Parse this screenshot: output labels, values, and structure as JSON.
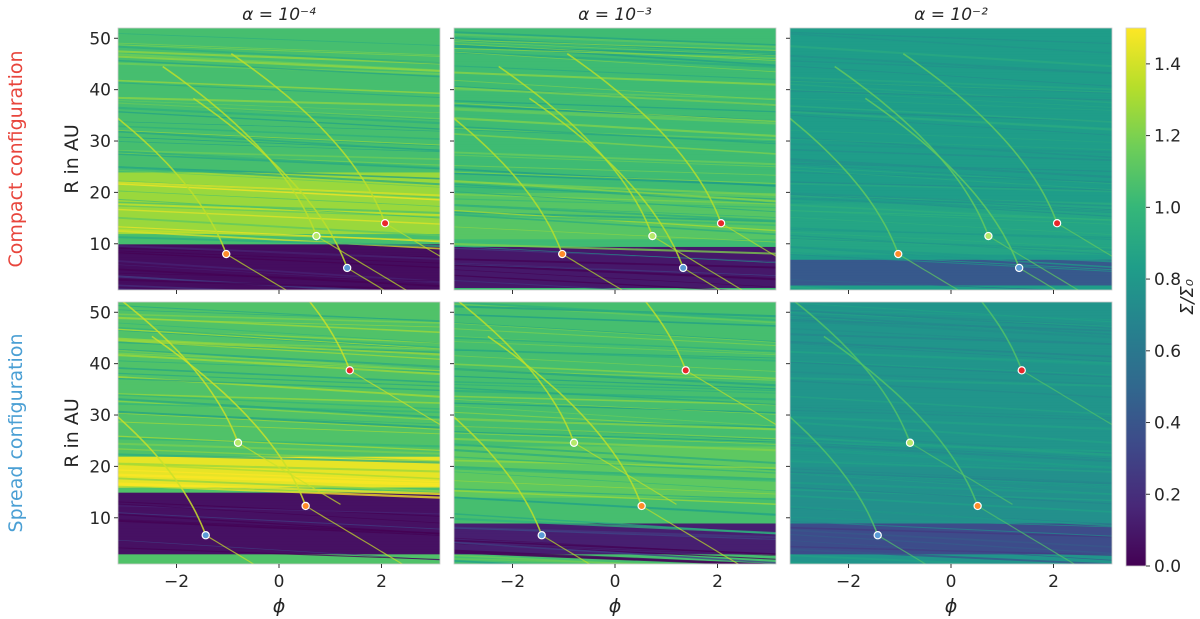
{
  "chart_data": {
    "type": "heatmap",
    "grid": false,
    "columns": [
      {
        "alpha_label": "α = 10⁻⁴"
      },
      {
        "alpha_label": "α = 10⁻³"
      },
      {
        "alpha_label": "α = 10⁻²"
      }
    ],
    "rows": [
      {
        "label": "Compact configuration",
        "label_color": "#e8453c"
      },
      {
        "label": "Spread configuration",
        "label_color": "#4a9fd4"
      }
    ],
    "xlabel": "ϕ",
    "ylabel": "R in AU",
    "xlim": [
      -3.14159,
      3.14159
    ],
    "ylim": [
      1,
      52
    ],
    "xticks": [
      -2,
      0,
      2
    ],
    "xtick_labels": [
      "−2",
      "0",
      "2"
    ],
    "yticks": [
      10,
      20,
      30,
      40,
      50
    ],
    "ytick_labels": [
      "10",
      "20",
      "30",
      "40",
      "50"
    ],
    "colorbar": {
      "label": "Σ/Σ₀",
      "range": [
        0.0,
        1.5
      ],
      "ticks": [
        0.0,
        0.2,
        0.4,
        0.6,
        0.8,
        1.0,
        1.2,
        1.4
      ],
      "tick_labels": [
        "0.0",
        "0.2",
        "0.4",
        "0.6",
        "0.8",
        "1.0",
        "1.2",
        "1.4"
      ],
      "colormap": "viridis",
      "colors": [
        "#440154",
        "#482878",
        "#3e4989",
        "#31688e",
        "#26828e",
        "#1f9e89",
        "#35b779",
        "#6ece58",
        "#b5de2b",
        "#fde725"
      ]
    },
    "planet_colors": [
      "#5b9bd5",
      "#ff8c2a",
      "#b6e86a",
      "#e8282b"
    ],
    "configurations": {
      "compact": {
        "planets": [
          {
            "phi": 1.33,
            "r": 5.3
          },
          {
            "phi": -1.03,
            "r": 8.0
          },
          {
            "phi": 0.73,
            "r": 11.5
          },
          {
            "phi": 2.07,
            "r": 14.0
          }
        ]
      },
      "spread": {
        "planets": [
          {
            "phi": -1.43,
            "r": 6.6
          },
          {
            "phi": 0.52,
            "r": 12.3
          },
          {
            "phi": -0.8,
            "r": 24.6
          },
          {
            "phi": 1.38,
            "r": 38.7
          }
        ]
      }
    },
    "panels": [
      {
        "row": 0,
        "col": 0,
        "background": 1.05,
        "gap": {
          "r0": 1,
          "r1": 10,
          "value": 0.05
        },
        "bright": {
          "r0": 12,
          "r1": 24,
          "value": 1.27
        }
      },
      {
        "row": 0,
        "col": 1,
        "background": 1.03,
        "gap": {
          "r0": 1.5,
          "r1": 9.5,
          "value": 0.1
        },
        "bright": {
          "r0": 11,
          "r1": 20,
          "value": 1.1
        }
      },
      {
        "row": 0,
        "col": 2,
        "background": 0.83,
        "gap": {
          "r0": 2,
          "r1": 7,
          "value": 0.42
        },
        "bright": {
          "r0": 8,
          "r1": 18,
          "value": 0.88
        }
      },
      {
        "row": 1,
        "col": 0,
        "background": 1.08,
        "gap": {
          "r0": 3,
          "r1": 15,
          "value": 0.07
        },
        "bright": {
          "r0": 16,
          "r1": 22,
          "value": 1.45
        }
      },
      {
        "row": 1,
        "col": 1,
        "background": 1.05,
        "gap": {
          "r0": 3,
          "r1": 9,
          "value": 0.13
        },
        "bright": {
          "r0": 14,
          "r1": 24,
          "value": 1.12
        }
      },
      {
        "row": 1,
        "col": 2,
        "background": 0.78,
        "gap": {
          "r0": 3,
          "r1": 9,
          "value": 0.35
        },
        "bright": {
          "r0": 9,
          "r1": 20,
          "value": 0.75
        }
      }
    ]
  }
}
